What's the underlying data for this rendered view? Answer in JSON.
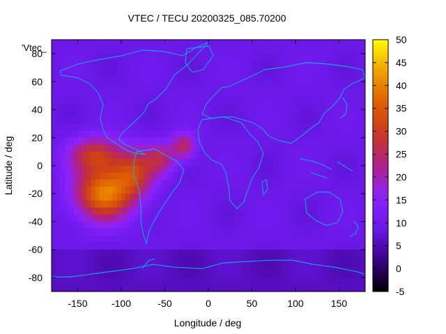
{
  "chart_data": {
    "type": "heatmap",
    "title": "VTEC / TECU 20200325_085.70200",
    "xlabel": "Longitude / deg",
    "ylabel": "Latitude / deg",
    "series_label": "'Vtec_",
    "xlim": [
      -180,
      180
    ],
    "ylim": [
      -90,
      90
    ],
    "x_ticks": [
      "-150",
      "-100",
      "-50",
      "0",
      "50",
      "100",
      "150"
    ],
    "x_tick_values": [
      -150,
      -100,
      -50,
      0,
      50,
      100,
      150
    ],
    "y_ticks": [
      "80",
      "60",
      "40",
      "20",
      "0",
      "-20",
      "-40",
      "-60",
      "-80"
    ],
    "y_tick_values": [
      80,
      60,
      40,
      20,
      0,
      -20,
      -40,
      -60,
      -80
    ],
    "colorbar": {
      "range": [
        -5,
        50
      ],
      "ticks": [
        "50",
        "45",
        "40",
        "35",
        "30",
        "25",
        "20",
        "15",
        "10",
        "5",
        "0",
        "-5"
      ],
      "tick_values": [
        50,
        45,
        40,
        35,
        30,
        25,
        20,
        15,
        10,
        5,
        0,
        -5
      ],
      "palette": [
        "#000000",
        "#3a0088",
        "#6a18e8",
        "#8a22ff",
        "#b0208a",
        "#c83820",
        "#e06000",
        "#f0a000",
        "#ffff00"
      ]
    },
    "background_tecu": 9,
    "hotspots": [
      {
        "lon": -120,
        "lat": -20,
        "rx": 42,
        "ry": 24,
        "peak": 30
      },
      {
        "lon": -130,
        "lat": 8,
        "rx": 38,
        "ry": 16,
        "peak": 19
      },
      {
        "lon": -85,
        "lat": -5,
        "rx": 30,
        "ry": 22,
        "peak": 18
      },
      {
        "lon": -55,
        "lat": 5,
        "rx": 22,
        "ry": 14,
        "peak": 14
      },
      {
        "lon": -28,
        "lat": 14,
        "rx": 18,
        "ry": 12,
        "peak": 16
      }
    ],
    "grid": false,
    "legend": "top-left"
  }
}
